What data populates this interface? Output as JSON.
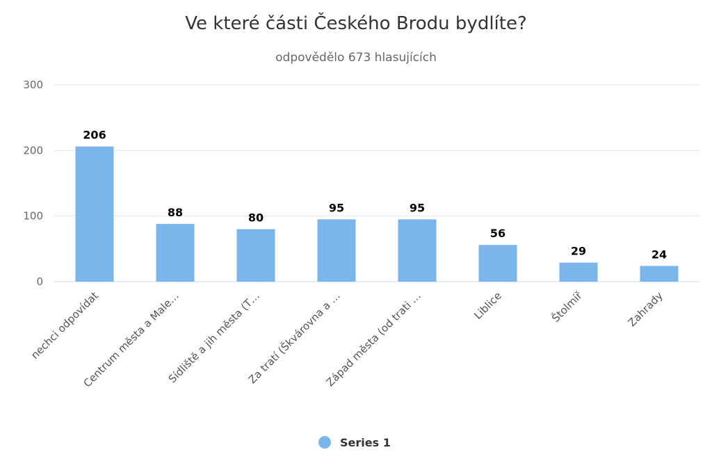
{
  "chart_data": {
    "type": "bar",
    "title": "Ve které části Českého Brodu bydlíte?",
    "subtitle": "odpovědělo 673 hlasujících",
    "xlabel": "",
    "ylabel": "",
    "categories": [
      "nechci odpovídat",
      "Centrum města a Male…",
      "Sídliště a jih města (T…",
      "Za tratí (Škvárovna a …",
      "Západ města (od trati …",
      "Liblice",
      "Štolmíř",
      "Zahrady"
    ],
    "series": [
      {
        "name": "Series 1",
        "values": [
          206,
          88,
          80,
          95,
          95,
          56,
          29,
          24
        ]
      }
    ],
    "ylim": [
      0,
      300
    ],
    "yticks": [
      0,
      100,
      200,
      300
    ],
    "grid": true,
    "legend_position": "bottom-center",
    "data_labels": true,
    "bar_color": "#7cb5ec",
    "grid_color": "#e6e6e6",
    "axis_color": "#ccd6eb"
  }
}
